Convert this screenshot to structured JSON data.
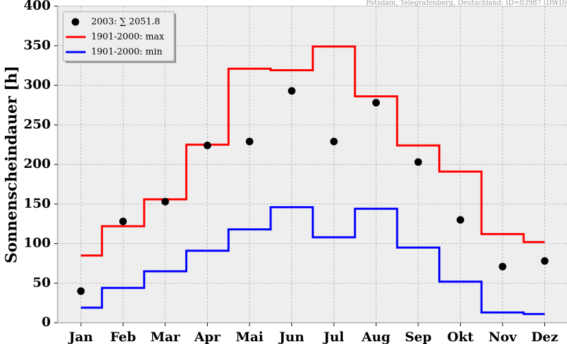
{
  "chart_data": {
    "type": "line",
    "source": "Potsdam, Telegrafenberg, Deutschland: ID=03987 (DWD)",
    "ylabel": "Sonnenscheindauer [h]",
    "ylim": [
      0,
      400
    ],
    "yticks": [
      0,
      50,
      100,
      150,
      200,
      250,
      300,
      350,
      400
    ],
    "categories": [
      "Jan",
      "Feb",
      "Mar",
      "Apr",
      "Mai",
      "Jun",
      "Jul",
      "Aug",
      "Sep",
      "Okt",
      "Nov",
      "Dez"
    ],
    "grid": true,
    "legend_position": "top-left",
    "series": [
      {
        "name": "2003: ∑ 2051.8",
        "style": "scatter",
        "color": "#000000",
        "values": [
          40,
          128,
          153,
          224,
          229,
          293,
          229,
          278,
          203,
          130,
          71,
          78
        ]
      },
      {
        "name": "1901-2000: max",
        "style": "step",
        "color": "#ff0000",
        "values": [
          85,
          122,
          156,
          225,
          321,
          319,
          349,
          286,
          224,
          191,
          112,
          102
        ]
      },
      {
        "name": "1901-2000: min",
        "style": "step",
        "color": "#0000ff",
        "values": [
          19,
          44,
          65,
          91,
          118,
          146,
          108,
          144,
          95,
          52,
          13,
          11
        ]
      }
    ]
  }
}
